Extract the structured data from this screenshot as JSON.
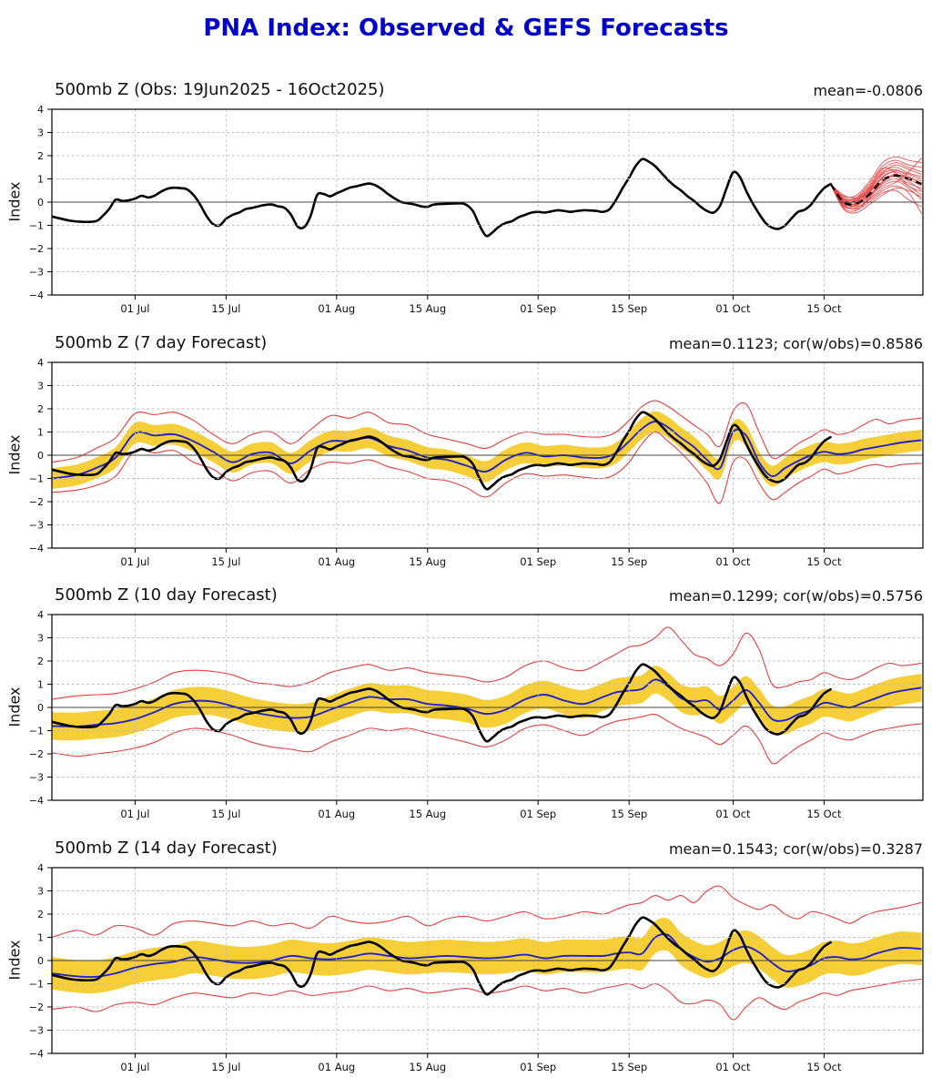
{
  "page": {
    "title": "PNA Index: Observed & GEFS Forecasts"
  },
  "colors": {
    "title_blue": "#0000CC",
    "observed_black": "#000000",
    "forecast_mean_blue": "#2222CC",
    "ensemble_red": "#E63E3E",
    "spread_band_yellow": "#F5CE38",
    "grid_gray": "#BBBBBB",
    "zero_line": "#444444"
  },
  "chart_data": {
    "type": "line",
    "figure_title": "PNA Index: Observed & GEFS Forecasts",
    "x_axis": {
      "domain_days": [
        -0.8,
        133.2
      ],
      "start_date": "19Jun2025",
      "tick_days": [
        12,
        26,
        43,
        57,
        74,
        88,
        104,
        118
      ],
      "tick_labels": [
        "01 Jul",
        "15 Jul",
        "01 Aug",
        "15 Aug",
        "01 Sep",
        "15 Sep",
        "01 Oct",
        "15 Oct"
      ]
    },
    "y_axis": {
      "label": "Index",
      "range": [
        -4,
        4
      ],
      "tick_values": [
        4,
        3,
        2,
        1,
        0,
        -1,
        -2,
        -3,
        -4
      ],
      "tick_labels": [
        "4",
        "3",
        "2",
        "1",
        "0",
        "−1",
        "−2",
        "−3",
        "−4"
      ],
      "grid": "dashed"
    },
    "obs_series": {
      "name": "Observed PNA index (black)",
      "points": [
        [
          -0.8,
          -0.62
        ],
        [
          2,
          -0.8
        ],
        [
          4,
          -0.85
        ],
        [
          6,
          -0.82
        ],
        [
          7,
          -0.6
        ],
        [
          8,
          -0.3
        ],
        [
          9,
          0.1
        ],
        [
          10,
          0.05
        ],
        [
          11,
          0.08
        ],
        [
          12,
          0.15
        ],
        [
          13,
          0.27
        ],
        [
          14,
          0.2
        ],
        [
          15,
          0.28
        ],
        [
          16,
          0.45
        ],
        [
          17,
          0.58
        ],
        [
          18,
          0.62
        ],
        [
          19,
          0.6
        ],
        [
          20,
          0.55
        ],
        [
          21,
          0.3
        ],
        [
          22,
          -0.1
        ],
        [
          23,
          -0.6
        ],
        [
          24,
          -0.95
        ],
        [
          25,
          -1.0
        ],
        [
          26,
          -0.72
        ],
        [
          27,
          -0.55
        ],
        [
          28,
          -0.45
        ],
        [
          29,
          -0.3
        ],
        [
          30,
          -0.25
        ],
        [
          31,
          -0.18
        ],
        [
          32,
          -0.12
        ],
        [
          33,
          -0.1
        ],
        [
          34,
          -0.18
        ],
        [
          35,
          -0.25
        ],
        [
          36,
          -0.55
        ],
        [
          37,
          -1.05
        ],
        [
          38,
          -1.08
        ],
        [
          39,
          -0.6
        ],
        [
          40,
          0.3
        ],
        [
          41,
          0.35
        ],
        [
          42,
          0.25
        ],
        [
          43,
          0.38
        ],
        [
          44,
          0.5
        ],
        [
          45,
          0.62
        ],
        [
          46,
          0.68
        ],
        [
          47,
          0.75
        ],
        [
          48,
          0.8
        ],
        [
          49,
          0.72
        ],
        [
          50,
          0.55
        ],
        [
          51,
          0.33
        ],
        [
          52,
          0.15
        ],
        [
          53,
          0.0
        ],
        [
          54,
          -0.05
        ],
        [
          55,
          -0.1
        ],
        [
          56,
          -0.18
        ],
        [
          57,
          -0.2
        ],
        [
          58,
          -0.1
        ],
        [
          60,
          -0.07
        ],
        [
          62,
          -0.05
        ],
        [
          63,
          -0.12
        ],
        [
          64,
          -0.4
        ],
        [
          65,
          -1.0
        ],
        [
          66,
          -1.45
        ],
        [
          67,
          -1.3
        ],
        [
          68,
          -1.05
        ],
        [
          69,
          -0.9
        ],
        [
          70,
          -0.82
        ],
        [
          71,
          -0.65
        ],
        [
          72,
          -0.55
        ],
        [
          73,
          -0.45
        ],
        [
          74,
          -0.42
        ],
        [
          75,
          -0.45
        ],
        [
          76,
          -0.4
        ],
        [
          77,
          -0.35
        ],
        [
          78,
          -0.38
        ],
        [
          79,
          -0.42
        ],
        [
          80,
          -0.38
        ],
        [
          81,
          -0.35
        ],
        [
          82,
          -0.36
        ],
        [
          83,
          -0.38
        ],
        [
          84,
          -0.42
        ],
        [
          85,
          -0.3
        ],
        [
          86,
          0.1
        ],
        [
          87,
          0.6
        ],
        [
          88,
          1.05
        ],
        [
          89,
          1.55
        ],
        [
          90,
          1.85
        ],
        [
          91,
          1.75
        ],
        [
          92,
          1.55
        ],
        [
          93,
          1.25
        ],
        [
          94,
          0.95
        ],
        [
          95,
          0.7
        ],
        [
          96,
          0.5
        ],
        [
          97,
          0.25
        ],
        [
          98,
          0.05
        ],
        [
          99,
          -0.2
        ],
        [
          100,
          -0.38
        ],
        [
          101,
          -0.45
        ],
        [
          102,
          -0.15
        ],
        [
          103,
          0.6
        ],
        [
          104,
          1.28
        ],
        [
          105,
          1.1
        ],
        [
          106,
          0.5
        ],
        [
          107,
          -0.05
        ],
        [
          108,
          -0.5
        ],
        [
          109,
          -0.9
        ],
        [
          110,
          -1.1
        ],
        [
          111,
          -1.15
        ],
        [
          112,
          -1.0
        ],
        [
          113,
          -0.7
        ],
        [
          114,
          -0.42
        ],
        [
          115,
          -0.33
        ],
        [
          116,
          -0.1
        ],
        [
          117,
          0.28
        ],
        [
          118,
          0.6
        ],
        [
          119,
          0.78
        ]
      ]
    },
    "forecast_days": [
      -0.8,
      3,
      6,
      9,
      12,
      15,
      18,
      21,
      24,
      27,
      30,
      33,
      36,
      39,
      42,
      45,
      48,
      51,
      54,
      57,
      60,
      63,
      66,
      69,
      72,
      75,
      78,
      81,
      84,
      86,
      88,
      90,
      92,
      94,
      96,
      98,
      100,
      102,
      104,
      106,
      108,
      110,
      112,
      114,
      116,
      118,
      120,
      122,
      124,
      126,
      128,
      130,
      133
    ],
    "panels": [
      {
        "kind": "observed",
        "title": "500mb Z (Obs: 19Jun2025 - 16Oct2025)",
        "annotation": "mean=-0.0806",
        "gefs_forecast": {
          "days": [
            119,
            121,
            123,
            125,
            127,
            129,
            131,
            133
          ],
          "ensemble_mean_dashed": [
            0.78,
            0.0,
            -0.05,
            0.35,
            0.95,
            1.15,
            1.0,
            0.78
          ],
          "members": [
            [
              0.78,
              0.0,
              -0.2,
              0.1,
              0.5,
              0.7,
              0.4,
              -0.5
            ],
            [
              0.78,
              -0.1,
              -0.3,
              0.0,
              0.4,
              0.5,
              0.1,
              -0.2
            ],
            [
              0.78,
              0.1,
              0.0,
              0.3,
              0.7,
              0.9,
              0.6,
              0.1
            ],
            [
              0.78,
              0.05,
              -0.1,
              0.25,
              0.8,
              1.0,
              0.7,
              0.3
            ],
            [
              0.78,
              -0.05,
              -0.15,
              0.3,
              0.9,
              1.2,
              0.9,
              0.5
            ],
            [
              0.78,
              0.0,
              0.1,
              0.5,
              1.0,
              1.1,
              0.8,
              0.6
            ],
            [
              0.78,
              0.15,
              0.1,
              0.45,
              1.1,
              1.3,
              1.0,
              0.7
            ],
            [
              0.78,
              -0.15,
              -0.25,
              0.2,
              0.85,
              1.15,
              1.05,
              0.8
            ],
            [
              0.78,
              0.1,
              0.05,
              0.55,
              1.2,
              1.4,
              1.1,
              0.9
            ],
            [
              0.78,
              -0.2,
              -0.1,
              0.4,
              1.05,
              1.35,
              1.2,
              1.0
            ],
            [
              0.78,
              0.2,
              0.15,
              0.6,
              1.3,
              1.5,
              1.25,
              1.1
            ],
            [
              0.78,
              0.0,
              -0.05,
              0.5,
              1.25,
              1.6,
              1.4,
              1.2
            ],
            [
              0.78,
              -0.1,
              0.0,
              0.65,
              1.4,
              1.7,
              1.5,
              1.3
            ],
            [
              0.78,
              0.1,
              0.2,
              0.8,
              1.55,
              1.8,
              1.6,
              1.5
            ],
            [
              0.78,
              0.25,
              0.3,
              0.9,
              1.7,
              1.95,
              1.8,
              1.7
            ],
            [
              0.78,
              -0.25,
              -0.35,
              0.15,
              0.6,
              0.85,
              1.3,
              1.9
            ],
            [
              0.78,
              -0.3,
              -0.45,
              -0.1,
              0.3,
              0.6,
              0.5,
              0.2
            ],
            [
              0.78,
              0.3,
              0.2,
              0.7,
              1.45,
              1.25,
              0.7,
              0.45
            ]
          ]
        }
      },
      {
        "kind": "forecast",
        "title": "500mb Z (7 day Forecast)",
        "annotation": "mean=0.1123; cor(w/obs)=0.8586",
        "band_halfwidth": 0.45,
        "mean": [
          -1.0,
          -0.85,
          -0.55,
          -0.1,
          0.95,
          0.85,
          0.9,
          0.6,
          0.15,
          -0.3,
          0.05,
          0.1,
          -0.35,
          0.2,
          0.6,
          0.6,
          0.75,
          0.4,
          0.2,
          -0.1,
          -0.2,
          -0.45,
          -0.7,
          -0.2,
          0.1,
          -0.05,
          0.0,
          -0.1,
          -0.1,
          0.1,
          0.6,
          1.15,
          1.45,
          1.2,
          0.75,
          0.35,
          -0.2,
          -0.55,
          1.0,
          0.85,
          -0.3,
          -0.9,
          -0.55,
          -0.25,
          0.0,
          0.15,
          0.05,
          0.1,
          0.25,
          0.35,
          0.45,
          0.55,
          0.65
        ],
        "red_hi": [
          -0.3,
          -0.1,
          0.3,
          0.75,
          1.8,
          1.75,
          1.85,
          1.5,
          0.9,
          0.5,
          0.9,
          1.0,
          0.5,
          1.1,
          1.7,
          1.6,
          1.85,
          1.4,
          1.3,
          0.9,
          0.7,
          0.5,
          0.3,
          0.7,
          1.0,
          0.9,
          0.9,
          0.8,
          0.8,
          1.0,
          1.5,
          2.1,
          2.35,
          2.1,
          1.7,
          1.3,
          0.9,
          0.4,
          1.9,
          2.2,
          1.0,
          -0.1,
          0.1,
          0.5,
          0.8,
          1.1,
          0.9,
          1.0,
          1.3,
          1.55,
          1.35,
          1.5,
          1.6
        ],
        "red_lo": [
          -1.6,
          -1.5,
          -1.3,
          -0.9,
          0.2,
          0.1,
          0.2,
          -0.3,
          -0.6,
          -1.1,
          -0.75,
          -0.7,
          -1.2,
          -0.6,
          -0.3,
          -0.35,
          -0.2,
          -0.5,
          -0.7,
          -1.0,
          -1.1,
          -1.4,
          -1.8,
          -1.2,
          -0.8,
          -0.9,
          -0.85,
          -0.95,
          -1.0,
          -0.8,
          -0.3,
          0.5,
          1.0,
          0.6,
          0.1,
          -0.5,
          -1.2,
          -2.05,
          -0.3,
          -0.2,
          -1.2,
          -1.9,
          -1.6,
          -1.2,
          -0.9,
          -0.6,
          -0.8,
          -0.7,
          -0.5,
          -0.4,
          -0.5,
          -0.4,
          -0.35
        ]
      },
      {
        "kind": "forecast",
        "title": "500mb Z (10 day Forecast)",
        "annotation": "mean=0.1299; cor(w/obs)=0.5756",
        "band_halfwidth": 0.6,
        "mean": [
          -0.8,
          -0.82,
          -0.75,
          -0.68,
          -0.5,
          -0.2,
          0.15,
          0.28,
          0.25,
          0.05,
          -0.2,
          -0.35,
          -0.45,
          -0.4,
          -0.1,
          0.2,
          0.45,
          0.35,
          0.35,
          0.15,
          0.08,
          -0.05,
          -0.28,
          -0.1,
          0.35,
          0.55,
          0.3,
          0.15,
          0.45,
          0.65,
          0.72,
          0.8,
          1.2,
          0.9,
          0.4,
          0.25,
          0.3,
          -0.1,
          0.3,
          0.75,
          0.2,
          -0.5,
          -0.55,
          -0.3,
          -0.1,
          0.2,
          0.1,
          0.0,
          0.2,
          0.4,
          0.6,
          0.72,
          0.85
        ],
        "red_hi": [
          0.35,
          0.5,
          0.55,
          0.6,
          0.8,
          1.1,
          1.5,
          1.6,
          1.55,
          1.4,
          1.1,
          1.0,
          0.9,
          1.1,
          1.5,
          1.7,
          1.85,
          1.6,
          1.7,
          1.5,
          1.4,
          1.3,
          1.1,
          1.3,
          1.8,
          2.0,
          1.7,
          1.6,
          2.0,
          2.3,
          2.6,
          2.7,
          3.0,
          3.45,
          2.9,
          2.3,
          2.1,
          1.8,
          2.3,
          3.2,
          2.5,
          1.0,
          0.9,
          1.1,
          1.2,
          1.5,
          1.3,
          1.2,
          1.4,
          1.7,
          1.9,
          1.8,
          1.9
        ],
        "red_lo": [
          -1.95,
          -2.1,
          -2.0,
          -1.9,
          -1.75,
          -1.5,
          -1.1,
          -0.9,
          -1.0,
          -1.2,
          -1.5,
          -1.7,
          -1.8,
          -1.9,
          -1.5,
          -1.2,
          -0.9,
          -1.0,
          -0.9,
          -1.1,
          -1.3,
          -1.5,
          -1.7,
          -1.4,
          -0.9,
          -0.75,
          -1.0,
          -1.2,
          -0.8,
          -0.6,
          -0.5,
          -0.4,
          -0.3,
          -0.6,
          -0.9,
          -1.1,
          -1.3,
          -1.6,
          -1.2,
          -0.8,
          -1.4,
          -2.4,
          -2.1,
          -1.7,
          -1.4,
          -1.1,
          -1.3,
          -1.4,
          -1.2,
          -1.0,
          -0.9,
          -0.8,
          -0.7
        ]
      },
      {
        "kind": "forecast",
        "title": "500mb Z (14 day Forecast)",
        "annotation": "mean=0.1543; cor(w/obs)=0.3287",
        "band_halfwidth": 0.7,
        "mean": [
          -0.55,
          -0.68,
          -0.7,
          -0.55,
          -0.3,
          -0.15,
          -0.05,
          0.15,
          0.05,
          -0.08,
          -0.1,
          0.0,
          0.2,
          0.1,
          0.05,
          0.15,
          0.3,
          0.2,
          0.1,
          0.15,
          0.2,
          0.15,
          0.1,
          0.15,
          0.25,
          0.1,
          0.2,
          0.2,
          0.2,
          0.3,
          0.35,
          0.3,
          1.0,
          1.1,
          0.5,
          0.15,
          -0.05,
          0.1,
          0.45,
          0.6,
          0.35,
          -0.1,
          -0.45,
          -0.4,
          -0.2,
          0.1,
          0.15,
          0.05,
          0.1,
          0.3,
          0.45,
          0.55,
          0.5
        ],
        "red_hi": [
          1.0,
          1.3,
          1.1,
          1.5,
          1.4,
          1.1,
          1.6,
          1.7,
          1.6,
          1.5,
          1.7,
          1.5,
          1.6,
          1.4,
          1.9,
          1.7,
          1.6,
          1.7,
          1.9,
          1.5,
          1.8,
          1.9,
          1.7,
          1.9,
          2.1,
          1.8,
          1.9,
          2.1,
          2.0,
          2.2,
          2.4,
          2.5,
          2.8,
          2.6,
          2.8,
          2.5,
          3.0,
          3.2,
          2.7,
          2.4,
          2.2,
          2.4,
          2.0,
          1.8,
          2.1,
          2.0,
          1.8,
          1.6,
          1.9,
          2.1,
          2.2,
          2.3,
          2.5
        ],
        "red_lo": [
          -2.1,
          -2.0,
          -2.2,
          -1.9,
          -1.8,
          -1.9,
          -1.6,
          -1.4,
          -1.5,
          -1.6,
          -1.4,
          -1.5,
          -1.3,
          -1.5,
          -1.4,
          -1.3,
          -1.1,
          -1.3,
          -1.2,
          -1.4,
          -1.3,
          -1.2,
          -1.4,
          -1.3,
          -1.1,
          -1.3,
          -1.2,
          -1.4,
          -1.2,
          -1.1,
          -1.0,
          -1.2,
          -1.0,
          -1.3,
          -1.8,
          -1.85,
          -1.7,
          -1.9,
          -2.55,
          -2.0,
          -1.6,
          -1.9,
          -2.1,
          -1.8,
          -1.6,
          -1.4,
          -1.5,
          -1.3,
          -1.2,
          -1.1,
          -1.0,
          -0.9,
          -0.8
        ]
      }
    ]
  }
}
